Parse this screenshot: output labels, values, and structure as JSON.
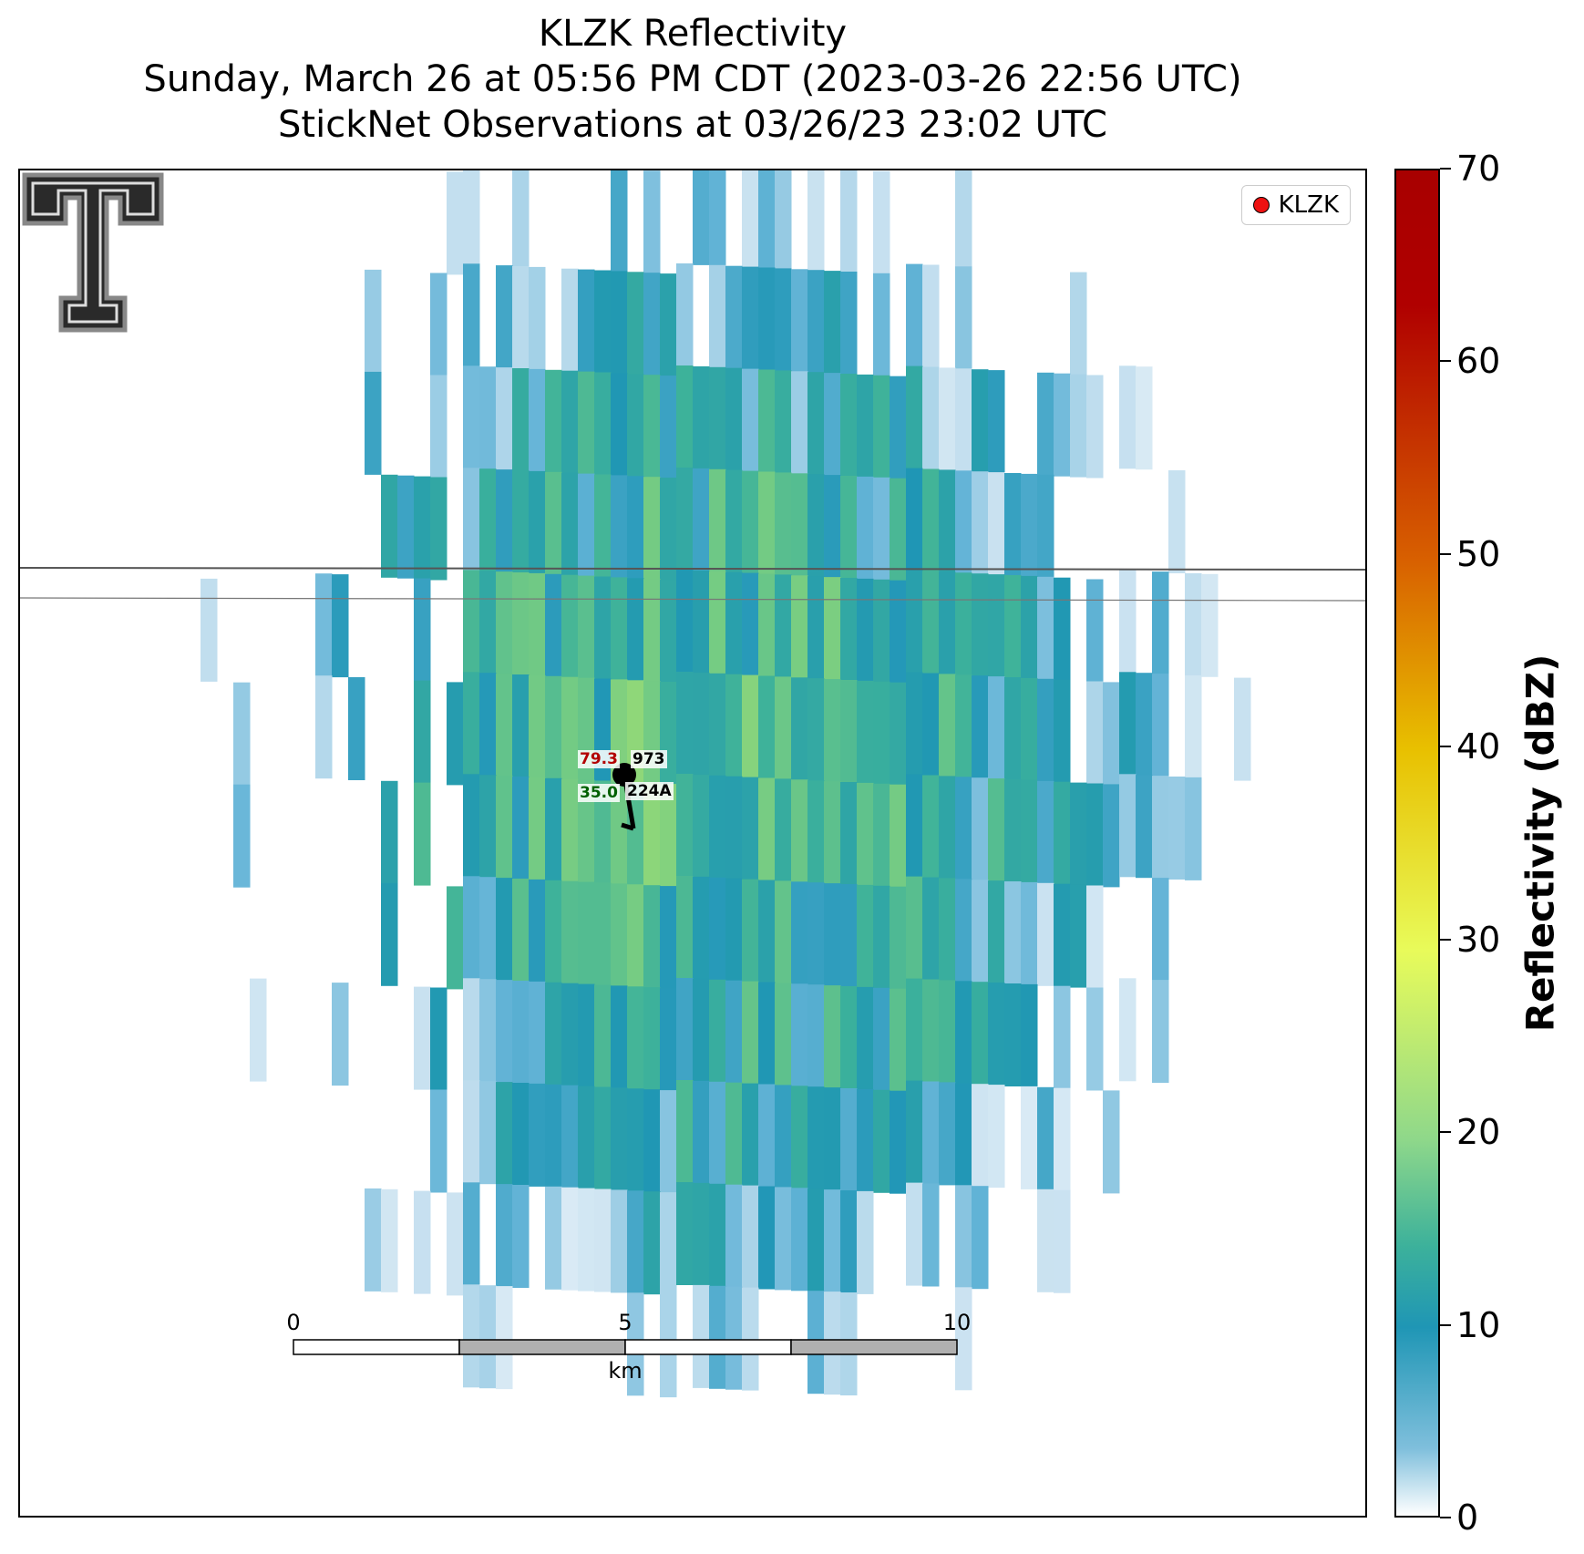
{
  "title": {
    "line1": "KLZK Reflectivity",
    "line2": "Sunday, March 26 at 05:56 PM CDT (2023-03-26 22:56 UTC)",
    "line3": "StickNet Observations at 03/26/23 23:02 UTC"
  },
  "legend": {
    "label": "KLZK",
    "marker_color": "#ee1111"
  },
  "station": {
    "temperature": "79.3",
    "pressure": "973",
    "dewpoint": "35.0",
    "id": "224A",
    "temp_color": "#b30000",
    "dew_color": "#006000"
  },
  "scale_bar": {
    "ticks": [
      "0",
      "5",
      "10"
    ],
    "unit": "km"
  },
  "colorbar": {
    "label": "Reflectivity (dBZ)",
    "ticks": [
      "0",
      "10",
      "20",
      "30",
      "40",
      "50",
      "60",
      "70"
    ],
    "min": 0,
    "max": 70
  },
  "logo": {
    "icon": "texas-tech-double-t-logo"
  }
}
